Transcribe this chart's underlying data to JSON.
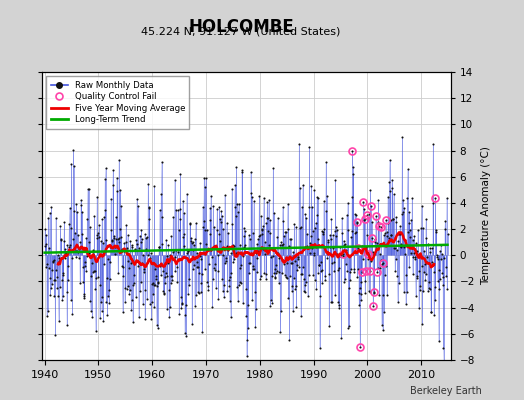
{
  "title": "HOLCOMBE",
  "subtitle": "45.224 N, 91.127 W (United States)",
  "ylabel_right": "Temperature Anomaly (°C)",
  "credit": "Berkeley Earth",
  "year_start": 1940,
  "year_end": 2015,
  "ylim": [
    -8,
    14
  ],
  "yticks": [
    -8,
    -6,
    -4,
    -2,
    0,
    2,
    4,
    6,
    8,
    10,
    12,
    14
  ],
  "xticks": [
    1940,
    1950,
    1960,
    1970,
    1980,
    1990,
    2000,
    2010
  ],
  "background_color": "#d3d3d3",
  "plot_bg_color": "#ffffff",
  "raw_line_color": "#4455dd",
  "raw_dot_color": "#111111",
  "qc_fail_color": "#ff44aa",
  "moving_avg_color": "#ee0000",
  "trend_color": "#00aa00",
  "seed": 77
}
